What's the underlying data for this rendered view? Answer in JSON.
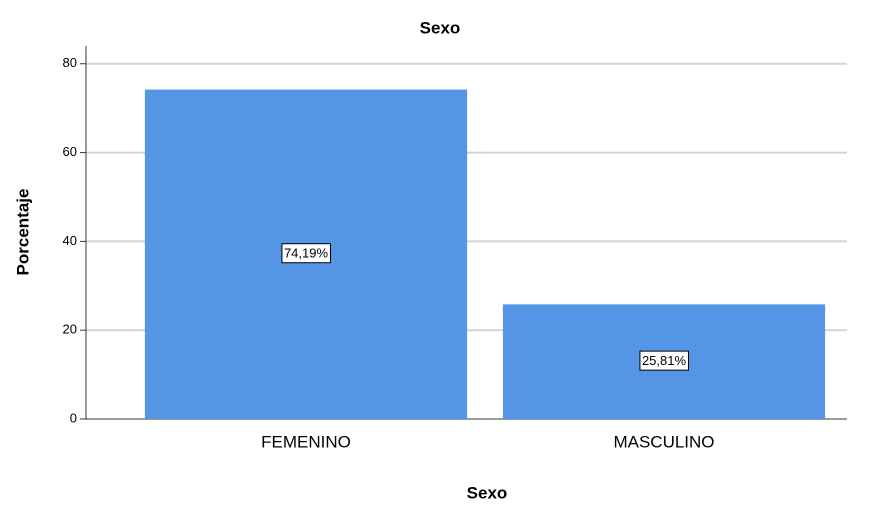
{
  "chart_data": {
    "type": "bar",
    "title": "Sexo",
    "x_label": "Sexo",
    "y_label": "Porcentaje",
    "categories": [
      "FEMENINO",
      "MASCULINO"
    ],
    "values": [
      74.19,
      25.81
    ],
    "value_labels": [
      "74,19%",
      "25,81%"
    ],
    "color": "#5495e6",
    "ylim": [
      0,
      84
    ],
    "yticks": [
      0,
      20,
      40,
      60,
      80
    ],
    "grid": true
  }
}
